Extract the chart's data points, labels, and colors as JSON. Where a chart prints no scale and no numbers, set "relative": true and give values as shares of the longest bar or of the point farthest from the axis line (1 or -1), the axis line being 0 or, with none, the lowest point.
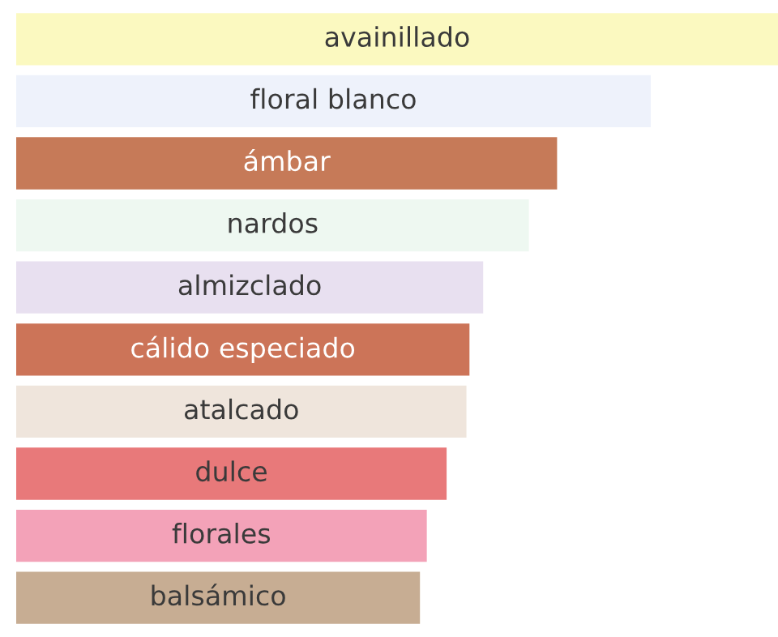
{
  "chart_data": {
    "type": "bar",
    "orientation": "horizontal",
    "relative": true,
    "categories": [
      "avainillado",
      "floral blanco",
      "ámbar",
      "nardos",
      "almizclado",
      "cálido especiado",
      "atalcado",
      "dulce",
      "florales",
      "balsámico"
    ],
    "values": [
      1,
      0.833,
      0.71,
      0.673,
      0.613,
      0.595,
      0.591,
      0.565,
      0.539,
      0.53
    ],
    "colors": [
      "#fbf9c0",
      "#eef2fb",
      "#c67a58",
      "#eef8f1",
      "#e8e0f0",
      "#cc7458",
      "#efe5dc",
      "#e8797a",
      "#f3a2b8",
      "#c7ad93"
    ]
  }
}
